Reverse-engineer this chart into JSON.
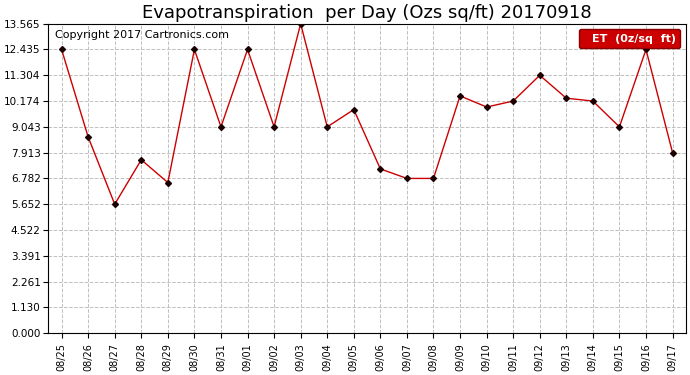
{
  "title": "Evapotranspiration  per Day (Ozs sq/ft) 20170918",
  "copyright": "Copyright 2017 Cartronics.com",
  "legend_label": "ET  (0z/sq  ft)",
  "x_labels": [
    "08/25",
    "08/26",
    "08/27",
    "08/28",
    "08/29",
    "08/30",
    "08/31",
    "09/01",
    "09/02",
    "09/03",
    "09/04",
    "09/05",
    "09/06",
    "09/07",
    "09/08",
    "09/09",
    "09/10",
    "09/11",
    "09/12",
    "09/13",
    "09/14",
    "09/15",
    "09/16",
    "09/17"
  ],
  "y_values": [
    12.435,
    8.6,
    5.652,
    7.6,
    6.6,
    12.435,
    9.043,
    12.435,
    9.043,
    13.565,
    9.043,
    9.8,
    7.2,
    6.782,
    6.782,
    10.4,
    9.913,
    10.174,
    11.304,
    10.3,
    10.174,
    9.043,
    12.435,
    7.913
  ],
  "y_ticks": [
    0.0,
    1.13,
    2.261,
    3.391,
    4.522,
    5.652,
    6.782,
    7.913,
    9.043,
    10.174,
    11.304,
    12.435,
    13.565
  ],
  "ylim": [
    0.0,
    13.565
  ],
  "line_color": "#cc0000",
  "marker_color": "#1a0000",
  "background_color": "#ffffff",
  "grid_color": "#c0c0c0",
  "title_fontsize": 13,
  "copyright_fontsize": 8,
  "legend_bg_color": "#cc0000",
  "legend_text_color": "#ffffff"
}
